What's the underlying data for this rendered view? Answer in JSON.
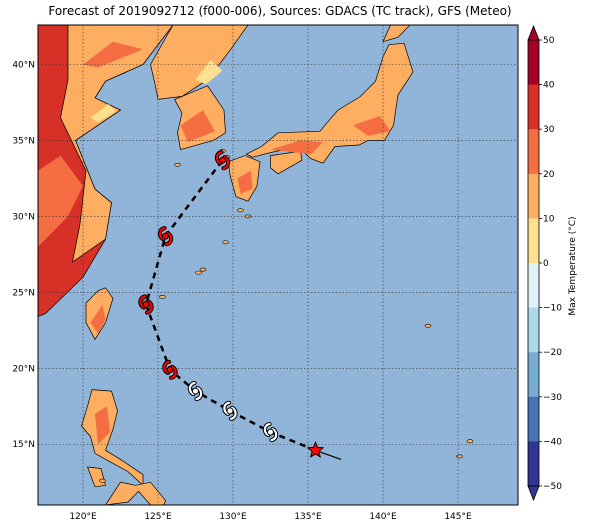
{
  "title": "Forecast of 2019092712 (f000-006), Sources: GDACS (TC track), GFS (Meteo)",
  "map": {
    "lon_range": [
      117,
      149
    ],
    "lat_range": [
      11,
      42.6
    ],
    "lat_ticks": [
      "15°N",
      "20°N",
      "25°N",
      "30°N",
      "35°N",
      "40°N"
    ],
    "lon_ticks": [
      "120°E",
      "125°E",
      "130°E",
      "135°E",
      "140°E",
      "145°E"
    ],
    "grid": true,
    "ocean_color": "#91b5d9",
    "land_colors": {
      "cool": "#fee090",
      "mild": "#fdae61",
      "warm": "#f46d43",
      "hot": "#d73027"
    }
  },
  "colorbar": {
    "label": "Max Temperature (°C)",
    "ticks": [
      "50",
      "40",
      "30",
      "20",
      "10",
      "0",
      "−10",
      "−20",
      "−30",
      "−40",
      "−50"
    ],
    "colors": [
      "#a50026",
      "#d73027",
      "#f46d43",
      "#fdae61",
      "#fee090",
      "#e0f3f8",
      "#abd9e9",
      "#74add1",
      "#4575b4",
      "#313695"
    ]
  },
  "track": {
    "points": [
      {
        "lon": 135.5,
        "lat": 14.6,
        "type": "current"
      },
      {
        "lon": 132.5,
        "lat": 15.8,
        "type": "past"
      },
      {
        "lon": 129.8,
        "lat": 17.2,
        "type": "past"
      },
      {
        "lon": 127.5,
        "lat": 18.5,
        "type": "past"
      },
      {
        "lon": 125.8,
        "lat": 19.9,
        "type": "forecast"
      },
      {
        "lon": 124.2,
        "lat": 24.2,
        "type": "forecast"
      },
      {
        "lon": 125.5,
        "lat": 28.7,
        "type": "forecast"
      },
      {
        "lon": 129.3,
        "lat": 33.7,
        "type": "forecast"
      }
    ],
    "history_tail": [
      {
        "lon": 137.2,
        "lat": 14.0
      },
      {
        "lon": 135.5,
        "lat": 14.6
      }
    ],
    "current_color": "#ff0000",
    "forecast_color": "#ff0000",
    "past_color": "#ffffff"
  }
}
